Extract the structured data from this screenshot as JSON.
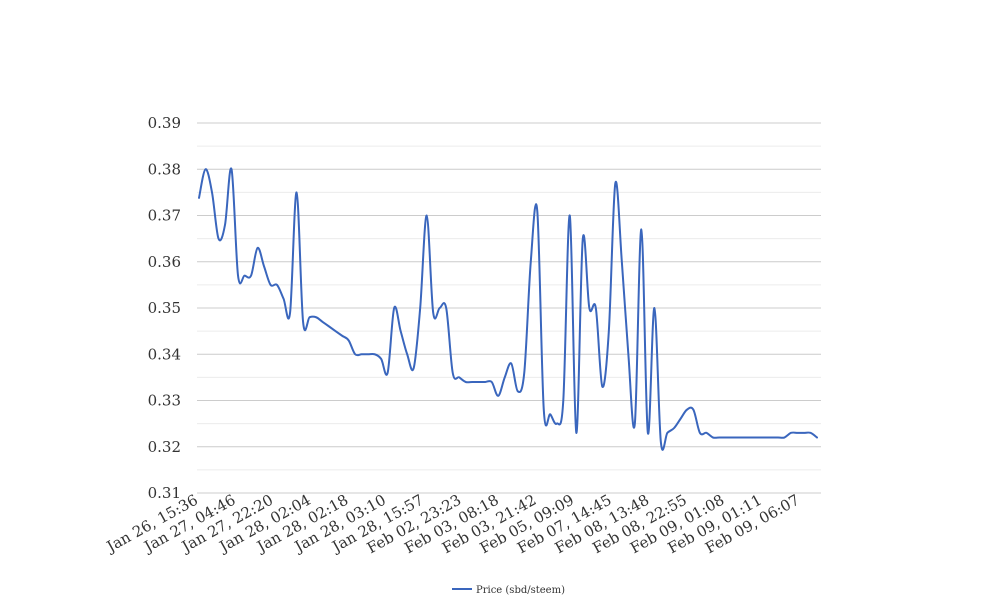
{
  "chart_data": {
    "type": "line",
    "title": "",
    "xlabel": "",
    "ylabel": "",
    "ylim": [
      0.31,
      0.39
    ],
    "y_ticks": [
      "0.31",
      "0.32",
      "0.33",
      "0.34",
      "0.35",
      "0.36",
      "0.37",
      "0.38",
      "0.39"
    ],
    "minor_grid": true,
    "legend_position": "bottom",
    "x_tick_labels": [
      "Jan 26, 15:36",
      "Jan 27, 04:46",
      "Jan 27, 22:20",
      "Jan 28, 02:04",
      "Jan 28, 02:18",
      "Jan 28, 03:10",
      "Jan 28, 15:57",
      "Feb 02, 23:23",
      "Feb 03, 08:18",
      "Feb 03, 21:42",
      "Feb 05, 09:09",
      "Feb 07, 14:45",
      "Feb 08, 13:48",
      "Feb 08, 22:55",
      "Feb 09, 01:08",
      "Feb 09, 01:11",
      "Feb 09, 06:07"
    ],
    "series": [
      {
        "name": "Price (sbd/steem)",
        "color": "#3a66bd",
        "values": [
          0.3738,
          0.38,
          0.375,
          0.365,
          0.368,
          0.38,
          0.357,
          0.357,
          0.357,
          0.363,
          0.359,
          0.355,
          0.355,
          0.352,
          0.349,
          0.375,
          0.347,
          0.348,
          0.348,
          0.347,
          0.346,
          0.345,
          0.344,
          0.343,
          0.34,
          0.34,
          0.34,
          0.34,
          0.339,
          0.336,
          0.35,
          0.345,
          0.34,
          0.337,
          0.35,
          0.37,
          0.349,
          0.35,
          0.35,
          0.336,
          0.335,
          0.334,
          0.334,
          0.334,
          0.334,
          0.334,
          0.331,
          0.335,
          0.338,
          0.332,
          0.336,
          0.36,
          0.371,
          0.328,
          0.327,
          0.325,
          0.33,
          0.37,
          0.323,
          0.365,
          0.35,
          0.35,
          0.333,
          0.345,
          0.377,
          0.36,
          0.34,
          0.325,
          0.367,
          0.323,
          0.35,
          0.321,
          0.323,
          0.324,
          0.326,
          0.328,
          0.328,
          0.323,
          0.323,
          0.322,
          0.322,
          0.322,
          0.322,
          0.322,
          0.322,
          0.322,
          0.322,
          0.322,
          0.322,
          0.322,
          0.322,
          0.323,
          0.323,
          0.323,
          0.323,
          0.322
        ]
      }
    ]
  }
}
